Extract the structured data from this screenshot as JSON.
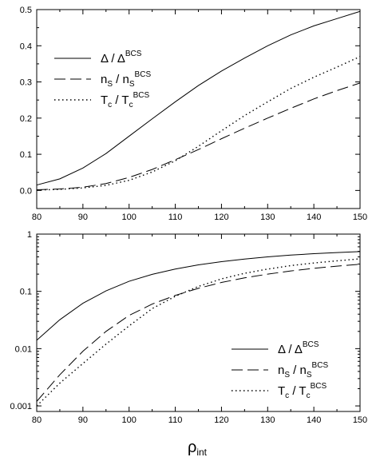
{
  "chart_data": [
    {
      "type": "line",
      "id": "top",
      "yscale": "linear",
      "xlim": [
        80,
        150
      ],
      "ylim": [
        -0.05,
        0.5
      ],
      "xticks": [
        "80",
        "90",
        "100",
        "110",
        "120",
        "130",
        "140",
        "150"
      ],
      "yticks": [
        "0.0",
        "0.1",
        "0.2",
        "0.3",
        "0.4",
        "0.5"
      ],
      "legend_position": "top-left",
      "x": [
        80,
        85,
        90,
        95,
        100,
        105,
        110,
        115,
        120,
        125,
        130,
        135,
        140,
        145,
        150
      ],
      "series": [
        {
          "style": "solid",
          "label": {
            "main": "Δ / Δ",
            "sup": "BCS",
            "sub": ""
          },
          "values": [
            0.015,
            0.032,
            0.062,
            0.102,
            0.15,
            0.198,
            0.245,
            0.29,
            0.33,
            0.366,
            0.4,
            0.43,
            0.455,
            0.475,
            0.495
          ]
        },
        {
          "style": "dashed",
          "label": {
            "main": "n",
            "sub": "S",
            "mid": " / n",
            "sub2": "S",
            "sup": "BCS"
          },
          "values": [
            0.002,
            0.004,
            0.009,
            0.019,
            0.036,
            0.058,
            0.085,
            0.113,
            0.143,
            0.172,
            0.2,
            0.227,
            0.253,
            0.276,
            0.297
          ]
        },
        {
          "style": "dotted",
          "label": {
            "main": "T",
            "sub": "c",
            "mid": " / T",
            "sub2": "c",
            "sup": "BCS"
          },
          "values": [
            0.001,
            0.003,
            0.007,
            0.014,
            0.028,
            0.051,
            0.082,
            0.122,
            0.165,
            0.207,
            0.245,
            0.282,
            0.313,
            0.341,
            0.37
          ]
        }
      ]
    },
    {
      "type": "line",
      "id": "bottom",
      "yscale": "log",
      "xlim": [
        80,
        150
      ],
      "ylim": [
        0.0008,
        1
      ],
      "xticks": [
        "80",
        "90",
        "100",
        "110",
        "120",
        "130",
        "140",
        "150"
      ],
      "yticks": [
        "0.001",
        "0.01",
        "0.1",
        "1"
      ],
      "yticks_values": [
        0.001,
        0.01,
        0.1,
        1
      ],
      "legend_position": "bottom-right",
      "x": [
        80,
        85,
        90,
        95,
        100,
        105,
        110,
        115,
        120,
        125,
        130,
        135,
        140,
        145,
        150
      ],
      "series": [
        {
          "style": "solid",
          "label": {
            "main": "Δ / Δ",
            "sup": "BCS",
            "sub": ""
          },
          "values": [
            0.014,
            0.032,
            0.062,
            0.102,
            0.15,
            0.198,
            0.245,
            0.29,
            0.33,
            0.366,
            0.4,
            0.43,
            0.455,
            0.475,
            0.495
          ]
        },
        {
          "style": "dashed",
          "label": {
            "main": "n",
            "sub": "S",
            "mid": " / n",
            "sub2": "S",
            "sup": "BCS"
          },
          "values": [
            0.0012,
            0.0035,
            0.009,
            0.02,
            0.038,
            0.06,
            0.085,
            0.113,
            0.143,
            0.172,
            0.2,
            0.227,
            0.253,
            0.276,
            0.297
          ]
        },
        {
          "style": "dotted",
          "label": {
            "main": "T",
            "sub": "c",
            "mid": " / T",
            "sub2": "c",
            "sup": "BCS"
          },
          "values": [
            0.001,
            0.0025,
            0.0055,
            0.012,
            0.025,
            0.05,
            0.082,
            0.122,
            0.165,
            0.207,
            0.245,
            0.282,
            0.313,
            0.341,
            0.37
          ]
        }
      ]
    }
  ],
  "xlabel": {
    "main": "ρ",
    "sub": "int"
  }
}
